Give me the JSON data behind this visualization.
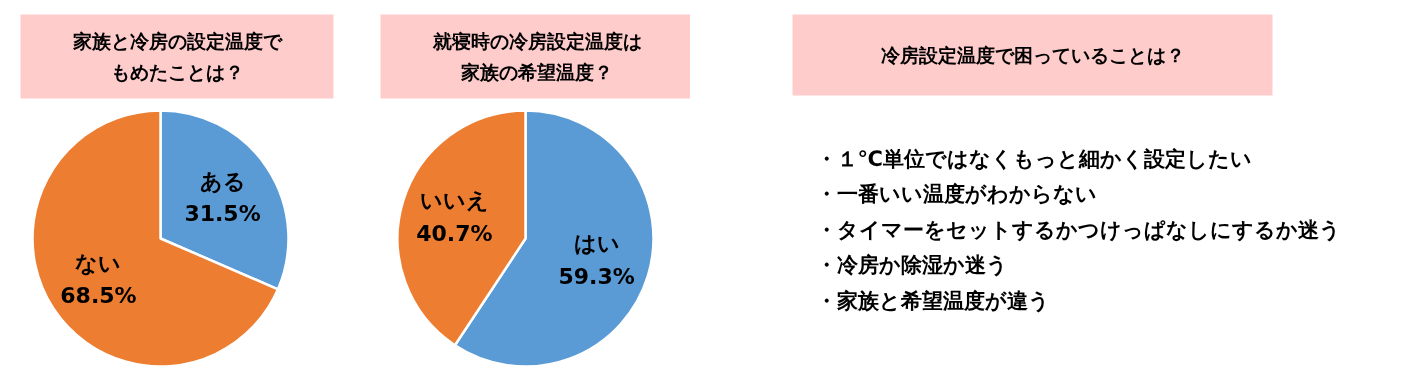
{
  "chart_data": [
    {
      "type": "pie",
      "title": "家族と冷房の設定温度でもめたことは？",
      "categories": [
        "ある",
        "ない"
      ],
      "values": [
        31.5,
        68.5
      ],
      "colors": [
        "#5b9bd5",
        "#ed7d31"
      ],
      "value_labels": [
        "31.5%",
        "68.5%"
      ]
    },
    {
      "type": "pie",
      "title": "就寝時の冷房設定温度は家族の希望温度？",
      "categories": [
        "はい",
        "いいえ"
      ],
      "values": [
        59.3,
        40.7
      ],
      "colors": [
        "#5b9bd5",
        "#ed7d31"
      ],
      "value_labels": [
        "59.3%",
        "40.7%"
      ]
    },
    {
      "type": "other",
      "title": "冷房設定温度で困っていることは？",
      "annotations": [
        "・１℃単位ではなくもっと細かく設定したい",
        "・一番いい温度がわからない",
        "・タイマーをセットするかつけっぱなしにするか迷う",
        "・冷房か除湿か迷う",
        "・家族と希望温度が違う"
      ]
    }
  ]
}
